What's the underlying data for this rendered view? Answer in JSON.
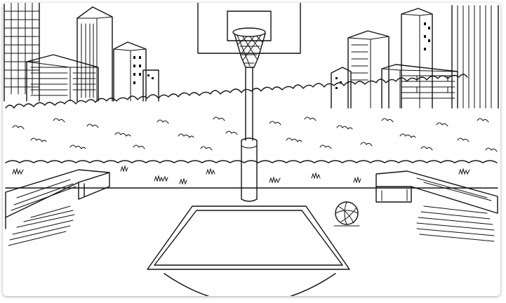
{
  "scene": {
    "subject": "basketball-court-sketch",
    "style": "black-and-white line drawing",
    "background_color": "#ffffff",
    "ink_color": "#111111",
    "frame": {
      "visible": true
    }
  }
}
